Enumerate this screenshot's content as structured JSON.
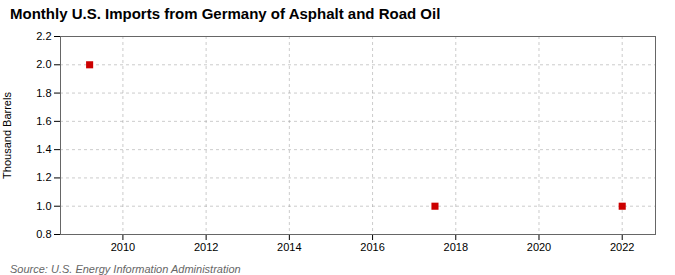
{
  "chart_data": {
    "type": "scatter",
    "title": "Monthly U.S. Imports from Germany of Asphalt and Road Oil",
    "ylabel": "Thousand Barrels",
    "source": "Source: U.S. Energy Information Administration",
    "x": [
      2009.2,
      2017.5,
      2022.0
    ],
    "values": [
      2.0,
      1.0,
      1.0
    ],
    "color": "#cc0000",
    "marker": "square",
    "xlim": [
      2008.5,
      2022.8
    ],
    "ylim": [
      0.8,
      2.2
    ],
    "xticks": [
      2010,
      2012,
      2014,
      2016,
      2018,
      2020,
      2022
    ],
    "yticks": [
      0.8,
      {
        "value": 1.0,
        "label": "1.0"
      },
      1.2,
      1.4,
      1.6,
      1.8,
      {
        "value": 2.0,
        "label": "2.0"
      },
      2.2
    ],
    "grid": true
  }
}
